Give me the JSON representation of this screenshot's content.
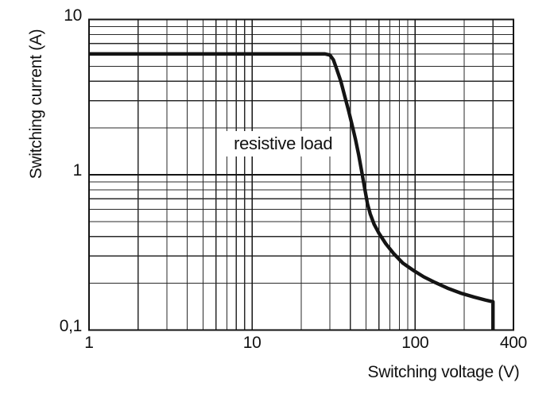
{
  "figure": {
    "background": "#ffffff",
    "text_color": "#111111",
    "grid_minor_color": "#2a2a2a",
    "grid_major_color": "#141414",
    "border_color": "#141414",
    "curve_color": "#141414"
  },
  "chart_data": {
    "type": "line",
    "title": "",
    "xlabel": "Switching voltage (V)",
    "ylabel": "Switching current (A)",
    "x_scale": "log",
    "y_scale": "log",
    "xlim": [
      1,
      400
    ],
    "ylim": [
      0.1,
      10
    ],
    "grid": "on",
    "legend_position": "none",
    "x_ticks": [
      {
        "value": 1,
        "label": "1"
      },
      {
        "value": 10,
        "label": "10"
      },
      {
        "value": 100,
        "label": "100"
      },
      {
        "value": 400,
        "label": "400"
      }
    ],
    "y_ticks": [
      {
        "value": 10,
        "label": "10"
      },
      {
        "value": 1,
        "label": "1"
      },
      {
        "value": 0.1,
        "label": "0,1"
      }
    ],
    "x_minor_gridlines": [
      2,
      3,
      4,
      5,
      6,
      7,
      8,
      9,
      20,
      30,
      40,
      50,
      60,
      70,
      80,
      90,
      200,
      300
    ],
    "x_major_gridlines": [
      10,
      100
    ],
    "y_minor_gridlines": [
      0.2,
      0.3,
      0.4,
      0.5,
      0.6,
      0.7,
      0.8,
      0.9,
      2,
      3,
      4,
      5,
      6,
      7,
      8,
      9
    ],
    "y_major_gridlines": [
      1
    ],
    "annotation": {
      "text": "resistive load",
      "x": 15.5,
      "y": 1.58
    },
    "series": [
      {
        "name": "resistive load",
        "points": [
          [
            1,
            6
          ],
          [
            28,
            6
          ],
          [
            30,
            5.9
          ],
          [
            31.5,
            5.5
          ],
          [
            33,
            4.8
          ],
          [
            35,
            4.0
          ],
          [
            37,
            3.2
          ],
          [
            39,
            2.6
          ],
          [
            41,
            2.1
          ],
          [
            43,
            1.7
          ],
          [
            45,
            1.35
          ],
          [
            47,
            1.05
          ],
          [
            49,
            0.82
          ],
          [
            51,
            0.65
          ],
          [
            53,
            0.56
          ],
          [
            56,
            0.48
          ],
          [
            60,
            0.42
          ],
          [
            66,
            0.36
          ],
          [
            74,
            0.31
          ],
          [
            84,
            0.27
          ],
          [
            97,
            0.243
          ],
          [
            113,
            0.22
          ],
          [
            133,
            0.202
          ],
          [
            158,
            0.186
          ],
          [
            190,
            0.173
          ],
          [
            230,
            0.163
          ],
          [
            270,
            0.156
          ],
          [
            300,
            0.152
          ],
          [
            300,
            0.1
          ]
        ]
      }
    ]
  }
}
